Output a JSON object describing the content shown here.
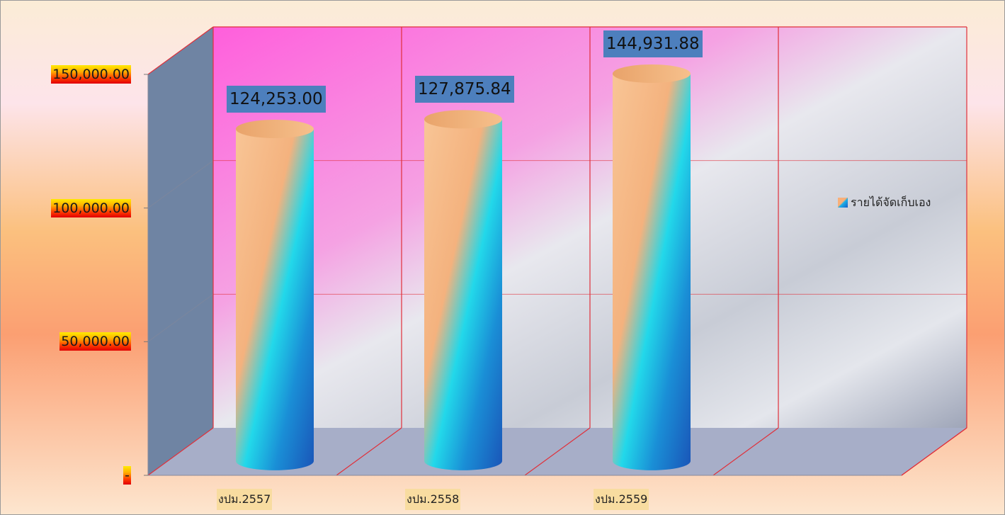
{
  "chart_data": {
    "type": "bar",
    "categories": [
      "งปม.2557",
      "งปม.2558",
      "งปม.2559"
    ],
    "series": [
      {
        "name": "รายได้จัดเก็บเอง",
        "values": [
          124253.0,
          127875.84,
          144931.88
        ]
      }
    ],
    "data_labels": [
      "124,253.00",
      "127,875.84",
      "144,931.88"
    ],
    "y_tick_labels": [
      "-",
      "50,000.00",
      "100,000.00",
      "150,000.00"
    ],
    "y_ticks": [
      0,
      50000,
      100000,
      150000
    ],
    "ylim": [
      0,
      150000
    ],
    "grid": true,
    "legend_position": "right",
    "style": "3d-cylinder",
    "colors": {
      "bar_top": "#f8b07a",
      "bar_mid": "#1ad8e8",
      "bar_bottom": "#1a5ec8",
      "grid_line": "#e0303a",
      "side_wall": "#6f84a3",
      "floor": "#a7aec8",
      "label_box": "#4d7fbd"
    }
  }
}
